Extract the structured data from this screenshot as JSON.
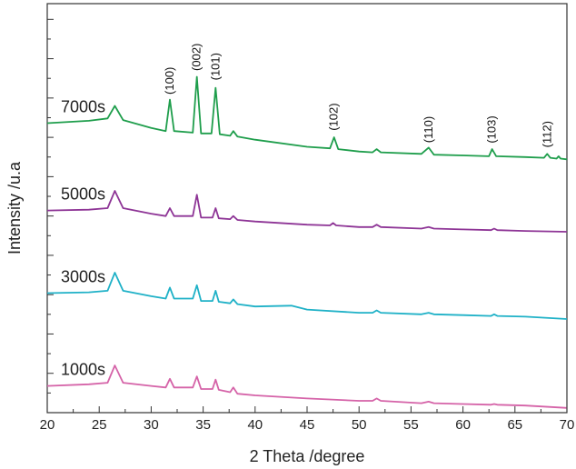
{
  "chart_data": {
    "type": "line",
    "title": "",
    "xlabel": "2 Theta /degree",
    "ylabel": "Intensity /u.a",
    "xlim": [
      20,
      70
    ],
    "xticks": [
      20,
      25,
      30,
      35,
      40,
      45,
      50,
      55,
      60,
      65,
      70
    ],
    "y_ticks_labeled": false,
    "grid": false,
    "series": [
      {
        "name": "1000s",
        "color": "#d563a8",
        "points": [
          [
            20,
            0.34
          ],
          [
            24,
            0.36
          ],
          [
            25.8,
            0.38
          ],
          [
            26.5,
            0.6
          ],
          [
            27.3,
            0.38
          ],
          [
            30,
            0.34
          ],
          [
            31.4,
            0.32
          ],
          [
            31.8,
            0.43
          ],
          [
            32.2,
            0.32
          ],
          [
            34.0,
            0.32
          ],
          [
            34.4,
            0.46
          ],
          [
            34.8,
            0.3
          ],
          [
            35.9,
            0.3
          ],
          [
            36.2,
            0.42
          ],
          [
            36.5,
            0.29
          ],
          [
            37.6,
            0.26
          ],
          [
            37.9,
            0.32
          ],
          [
            38.3,
            0.24
          ],
          [
            40,
            0.22
          ],
          [
            45,
            0.18
          ],
          [
            50,
            0.15
          ],
          [
            51.3,
            0.15
          ],
          [
            51.7,
            0.18
          ],
          [
            52.1,
            0.15
          ],
          [
            56,
            0.12
          ],
          [
            56.7,
            0.14
          ],
          [
            57.2,
            0.12
          ],
          [
            60,
            0.11
          ],
          [
            62.7,
            0.1
          ],
          [
            63,
            0.11
          ],
          [
            63.3,
            0.1
          ],
          [
            66,
            0.09
          ],
          [
            70,
            0.06
          ]
        ]
      },
      {
        "name": "3000s",
        "color": "#1fb1c7",
        "points": [
          [
            20,
            1.52
          ],
          [
            24,
            1.53
          ],
          [
            25.8,
            1.55
          ],
          [
            26.5,
            1.78
          ],
          [
            27.3,
            1.55
          ],
          [
            30,
            1.48
          ],
          [
            31.4,
            1.45
          ],
          [
            31.8,
            1.59
          ],
          [
            32.2,
            1.45
          ],
          [
            34.0,
            1.45
          ],
          [
            34.4,
            1.62
          ],
          [
            34.8,
            1.42
          ],
          [
            35.9,
            1.42
          ],
          [
            36.2,
            1.55
          ],
          [
            36.5,
            1.41
          ],
          [
            37.6,
            1.39
          ],
          [
            37.9,
            1.44
          ],
          [
            38.3,
            1.38
          ],
          [
            40,
            1.35
          ],
          [
            43.5,
            1.36
          ],
          [
            45,
            1.31
          ],
          [
            50,
            1.27
          ],
          [
            51.3,
            1.27
          ],
          [
            51.7,
            1.3
          ],
          [
            52.1,
            1.27
          ],
          [
            56,
            1.25
          ],
          [
            56.7,
            1.27
          ],
          [
            57.2,
            1.25
          ],
          [
            60,
            1.24
          ],
          [
            62.7,
            1.23
          ],
          [
            63,
            1.25
          ],
          [
            63.3,
            1.23
          ],
          [
            66,
            1.22
          ],
          [
            70,
            1.19
          ]
        ]
      },
      {
        "name": "5000s",
        "color": "#8e3596",
        "points": [
          [
            20,
            2.57
          ],
          [
            24,
            2.58
          ],
          [
            25.8,
            2.6
          ],
          [
            26.5,
            2.82
          ],
          [
            27.3,
            2.6
          ],
          [
            30,
            2.53
          ],
          [
            31.4,
            2.5
          ],
          [
            31.8,
            2.6
          ],
          [
            32.2,
            2.5
          ],
          [
            34.0,
            2.5
          ],
          [
            34.4,
            2.77
          ],
          [
            34.8,
            2.48
          ],
          [
            35.9,
            2.48
          ],
          [
            36.2,
            2.6
          ],
          [
            36.5,
            2.47
          ],
          [
            37.6,
            2.46
          ],
          [
            37.9,
            2.5
          ],
          [
            38.3,
            2.45
          ],
          [
            40,
            2.43
          ],
          [
            45,
            2.39
          ],
          [
            47.2,
            2.38
          ],
          [
            47.5,
            2.41
          ],
          [
            47.8,
            2.38
          ],
          [
            50,
            2.36
          ],
          [
            51.3,
            2.36
          ],
          [
            51.7,
            2.39
          ],
          [
            52.1,
            2.36
          ],
          [
            56,
            2.34
          ],
          [
            56.7,
            2.36
          ],
          [
            57.2,
            2.34
          ],
          [
            60,
            2.33
          ],
          [
            62.7,
            2.32
          ],
          [
            63,
            2.34
          ],
          [
            63.3,
            2.32
          ],
          [
            66,
            2.31
          ],
          [
            70,
            2.3
          ]
        ]
      },
      {
        "name": "7000s",
        "color": "#1f9e4c",
        "points": [
          [
            20,
            3.68
          ],
          [
            24,
            3.71
          ],
          [
            25.8,
            3.74
          ],
          [
            26.5,
            3.9
          ],
          [
            27.3,
            3.72
          ],
          [
            30,
            3.62
          ],
          [
            31.4,
            3.58
          ],
          [
            31.8,
            3.98
          ],
          [
            32.2,
            3.58
          ],
          [
            34.0,
            3.56
          ],
          [
            34.4,
            4.27
          ],
          [
            34.8,
            3.55
          ],
          [
            35.8,
            3.55
          ],
          [
            36.2,
            4.13
          ],
          [
            36.6,
            3.54
          ],
          [
            37.6,
            3.52
          ],
          [
            37.9,
            3.58
          ],
          [
            38.3,
            3.51
          ],
          [
            40,
            3.47
          ],
          [
            45,
            3.38
          ],
          [
            47.2,
            3.36
          ],
          [
            47.6,
            3.5
          ],
          [
            48.0,
            3.35
          ],
          [
            50,
            3.32
          ],
          [
            51.3,
            3.31
          ],
          [
            51.7,
            3.35
          ],
          [
            52.1,
            3.31
          ],
          [
            56,
            3.29
          ],
          [
            56.7,
            3.37
          ],
          [
            57.2,
            3.28
          ],
          [
            60,
            3.27
          ],
          [
            62.5,
            3.26
          ],
          [
            62.8,
            3.35
          ],
          [
            63.2,
            3.26
          ],
          [
            66,
            3.25
          ],
          [
            67.8,
            3.24
          ],
          [
            68.1,
            3.29
          ],
          [
            68.4,
            3.24
          ],
          [
            69,
            3.23
          ],
          [
            69.2,
            3.26
          ],
          [
            69.4,
            3.23
          ],
          [
            70,
            3.22
          ]
        ]
      }
    ],
    "peak_annotations": [
      {
        "label": "(100)",
        "x": 31.8,
        "y": 4.22
      },
      {
        "label": "(002)",
        "x": 34.4,
        "y": 4.52
      },
      {
        "label": "(101)",
        "x": 36.2,
        "y": 4.4
      },
      {
        "label": "(102)",
        "x": 47.6,
        "y": 3.76
      },
      {
        "label": "(110)",
        "x": 56.7,
        "y": 3.6
      },
      {
        "label": "(103)",
        "x": 62.8,
        "y": 3.6
      },
      {
        "label": "(112)",
        "x": 68.1,
        "y": 3.54
      }
    ],
    "ylim": [
      0,
      5.2
    ]
  }
}
